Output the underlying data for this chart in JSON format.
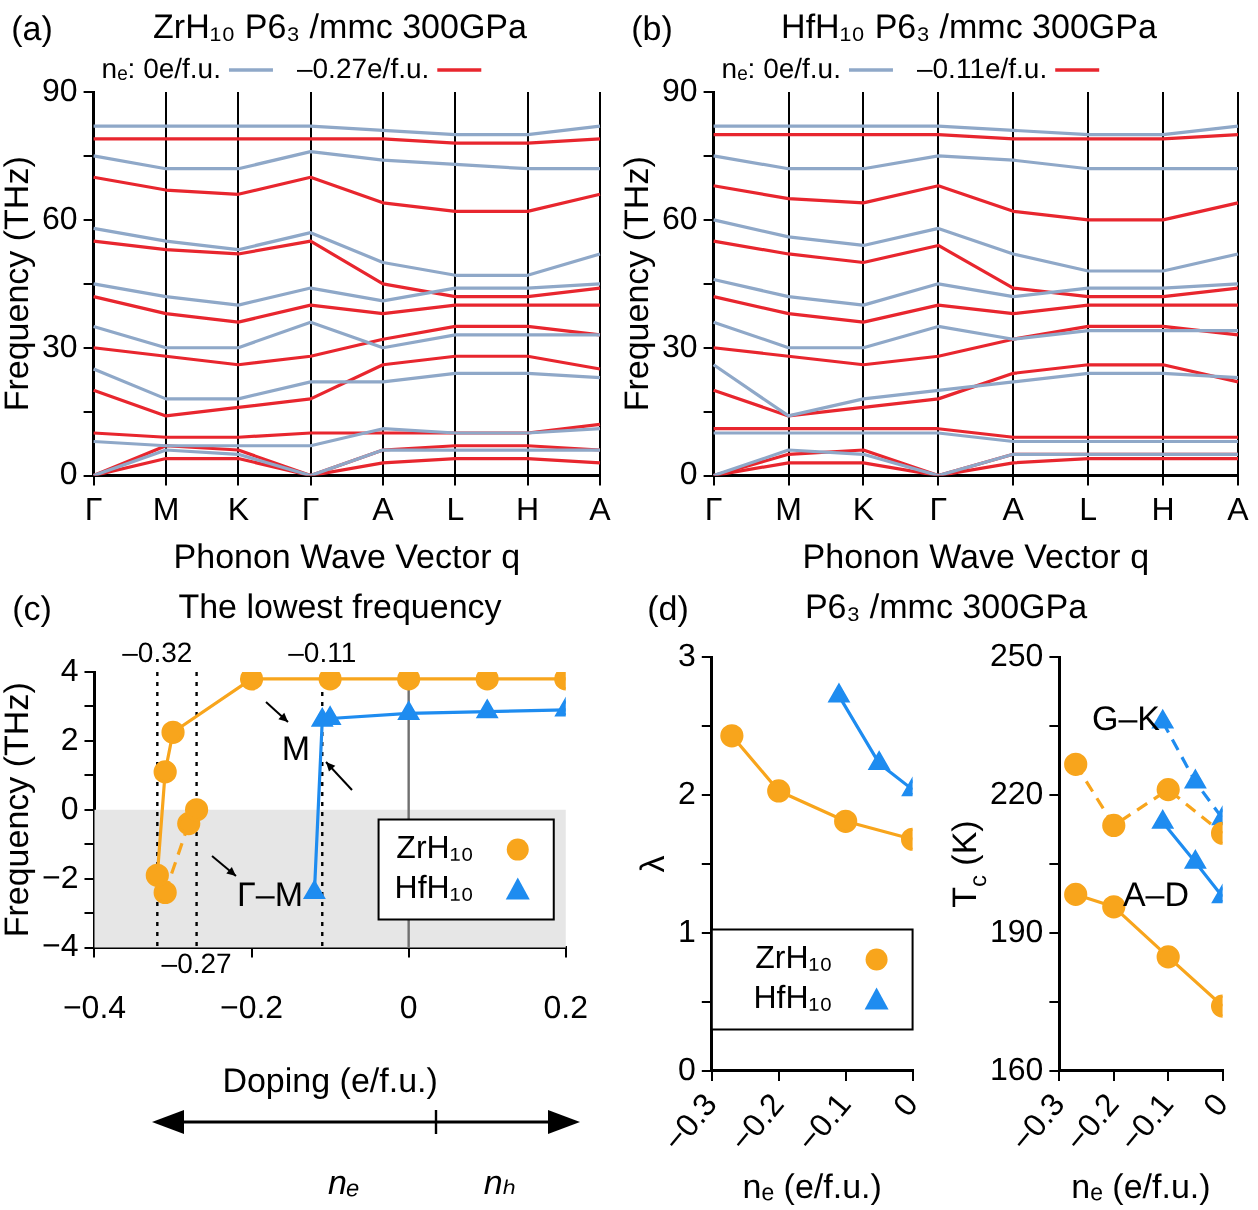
{
  "chart_data": [
    {
      "type": "line",
      "title": "ZrH₁₀ P6₃ /mmc 300GPa",
      "xlabel": "Phonon Wave Vector q",
      "ylabel": "Frequency (THz)",
      "annotations": [
        "(a)"
      ],
      "categories": [
        "Γ",
        "M",
        "K",
        "Γ",
        "A",
        "L",
        "H",
        "A"
      ],
      "ylim": [
        0,
        90
      ],
      "yticks": [
        0,
        {
          "value": 15,
          "label": null
        },
        30,
        {
          "value": 45,
          "label": null
        },
        60,
        {
          "value": 75,
          "label": null
        },
        90
      ],
      "grid": "x",
      "legend": "top",
      "marker": "none",
      "line_style": "solid",
      "series": [
        {
          "name": "nₑ: 0e/f.u.",
          "color": "#8fa8c8",
          "values": [
            82,
            82,
            82,
            82,
            81,
            80,
            80,
            82
          ]
        },
        {
          "color": "#8fa8c8",
          "values": [
            75,
            72,
            72,
            76,
            74,
            73,
            72,
            72
          ]
        },
        {
          "color": "#8fa8c8",
          "values": [
            58,
            55,
            53,
            57,
            50,
            47,
            47,
            52
          ]
        },
        {
          "color": "#8fa8c8",
          "values": [
            45,
            42,
            40,
            44,
            41,
            44,
            44,
            45
          ]
        },
        {
          "color": "#8fa8c8",
          "values": [
            35,
            30,
            30,
            36,
            30,
            33,
            33,
            33
          ]
        },
        {
          "color": "#8fa8c8",
          "values": [
            25,
            18,
            18,
            22,
            22,
            24,
            24,
            23
          ]
        },
        {
          "color": "#8fa8c8",
          "values": [
            8,
            7,
            7,
            7,
            11,
            10,
            10,
            11
          ]
        },
        {
          "color": "#8fa8c8",
          "values": [
            0,
            6,
            5,
            0,
            6,
            6,
            6,
            6
          ]
        },
        {
          "name": "–0.27e/f.u.",
          "color": "#e8262e",
          "values": [
            79,
            79,
            79,
            79,
            79,
            78,
            78,
            79
          ]
        },
        {
          "color": "#e8262e",
          "values": [
            70,
            67,
            66,
            70,
            64,
            62,
            62,
            66
          ]
        },
        {
          "color": "#e8262e",
          "values": [
            55,
            53,
            52,
            55,
            45,
            42,
            42,
            44
          ]
        },
        {
          "color": "#e8262e",
          "values": [
            42,
            38,
            36,
            40,
            38,
            40,
            40,
            40
          ]
        },
        {
          "color": "#e8262e",
          "values": [
            30,
            28,
            26,
            28,
            32,
            35,
            35,
            33
          ]
        },
        {
          "color": "#e8262e",
          "values": [
            20,
            14,
            16,
            18,
            26,
            28,
            28,
            25
          ]
        },
        {
          "color": "#e8262e",
          "values": [
            10,
            9,
            9,
            10,
            10,
            10,
            10,
            12
          ]
        },
        {
          "color": "#e8262e",
          "values": [
            0,
            7,
            6,
            0,
            6,
            7,
            7,
            6
          ]
        },
        {
          "color": "#e8262e",
          "values": [
            0,
            4,
            4,
            0,
            3,
            4,
            4,
            3
          ]
        }
      ]
    },
    {
      "type": "line",
      "title": "HfH₁₀ P6₃ /mmc 300GPa",
      "xlabel": "Phonon Wave Vector q",
      "ylabel": "Frequency (THz)",
      "annotations": [
        "(b)"
      ],
      "categories": [
        "Γ",
        "M",
        "K",
        "Γ",
        "A",
        "L",
        "H",
        "A"
      ],
      "ylim": [
        0,
        90
      ],
      "yticks": [
        0,
        {
          "value": 15,
          "label": null
        },
        30,
        {
          "value": 45,
          "label": null
        },
        60,
        {
          "value": 75,
          "label": null
        },
        90
      ],
      "grid": "x",
      "legend": "top",
      "marker": "none",
      "line_style": "solid",
      "series": [
        {
          "name": "nₑ: 0e/f.u.",
          "color": "#8fa8c8",
          "values": [
            82,
            82,
            82,
            82,
            81,
            80,
            80,
            82
          ]
        },
        {
          "color": "#8fa8c8",
          "values": [
            75,
            72,
            72,
            75,
            74,
            72,
            72,
            72
          ]
        },
        {
          "color": "#8fa8c8",
          "values": [
            60,
            56,
            54,
            58,
            52,
            48,
            48,
            52
          ]
        },
        {
          "color": "#8fa8c8",
          "values": [
            46,
            42,
            40,
            45,
            42,
            44,
            44,
            45
          ]
        },
        {
          "color": "#8fa8c8",
          "values": [
            36,
            30,
            30,
            35,
            32,
            34,
            34,
            34
          ]
        },
        {
          "color": "#8fa8c8",
          "values": [
            26,
            14,
            18,
            20,
            22,
            24,
            24,
            23
          ]
        },
        {
          "color": "#8fa8c8",
          "values": [
            10,
            10,
            10,
            10,
            8,
            8,
            8,
            8
          ]
        },
        {
          "color": "#8fa8c8",
          "values": [
            0,
            6,
            5,
            0,
            5,
            5,
            5,
            5
          ]
        },
        {
          "name": "–0.11e/f.u.",
          "color": "#e8262e",
          "values": [
            80,
            80,
            80,
            80,
            79,
            79,
            79,
            80
          ]
        },
        {
          "color": "#e8262e",
          "values": [
            68,
            65,
            64,
            68,
            62,
            60,
            60,
            64
          ]
        },
        {
          "color": "#e8262e",
          "values": [
            55,
            52,
            50,
            54,
            44,
            42,
            42,
            44
          ]
        },
        {
          "color": "#e8262e",
          "values": [
            42,
            38,
            36,
            40,
            38,
            40,
            40,
            40
          ]
        },
        {
          "color": "#e8262e",
          "values": [
            30,
            28,
            26,
            28,
            32,
            35,
            35,
            33
          ]
        },
        {
          "color": "#e8262e",
          "values": [
            20,
            14,
            16,
            18,
            24,
            26,
            26,
            22
          ]
        },
        {
          "color": "#e8262e",
          "values": [
            11,
            11,
            11,
            11,
            9,
            9,
            9,
            9
          ]
        },
        {
          "color": "#e8262e",
          "values": [
            0,
            5,
            6,
            0,
            5,
            5,
            5,
            5
          ]
        },
        {
          "color": "#e8262e",
          "values": [
            0,
            3,
            3,
            0,
            3,
            4,
            4,
            4
          ]
        }
      ]
    },
    {
      "type": "line",
      "title": "The lowest frequency",
      "xlabel": "Doping (e/f.u.)",
      "ylabel": "Frequency (THz)",
      "annotations": [
        "(c)",
        "M",
        "Γ–M",
        "nₑ",
        "nₕ"
      ],
      "xlim": [
        -0.4,
        0.2
      ],
      "xticks": [
        -0.4,
        -0.2,
        0,
        0.2
      ],
      "ylim": [
        -4,
        4
      ],
      "yticks": [
        -4,
        {
          "value": -3,
          "label": null
        },
        -2,
        {
          "value": -1,
          "label": null
        },
        0,
        {
          "value": 1,
          "label": null
        },
        2,
        {
          "value": 3,
          "label": null
        },
        4
      ],
      "legend": "bottom right",
      "ref_lines": [
        {
          "axis": "x",
          "value": -0.32,
          "label": "–0.32",
          "line_style": "dotted",
          "color": "#000000"
        },
        {
          "axis": "x",
          "value": -0.27,
          "label": "–0.27",
          "line_style": "dotted",
          "color": "#000000"
        },
        {
          "axis": "x",
          "value": -0.11,
          "label": "–0.11",
          "line_style": "dotted",
          "color": "#000000"
        },
        {
          "axis": "x",
          "value": 0,
          "color": "#707070",
          "line_style": "solid"
        }
      ],
      "bands": [
        {
          "axis": "y",
          "from": -4,
          "to": 0,
          "color": "#e6e6e6"
        }
      ],
      "series": [
        {
          "name": "ZrH₁₀",
          "color": "#f8a51c",
          "marker": "circle",
          "line_style": "solid",
          "x": [
            -0.32,
            -0.31,
            -0.3,
            -0.2,
            -0.1,
            0,
            0.1,
            0.2
          ],
          "values": [
            -1.9,
            1.1,
            2.25,
            3.8,
            3.8,
            3.8,
            3.8,
            3.8
          ]
        },
        {
          "color": "#f8a51c",
          "marker": "circle",
          "line_style": "dashed",
          "x": [
            -0.31,
            -0.28,
            -0.27
          ],
          "values": [
            -2.4,
            -0.4,
            0.0
          ]
        },
        {
          "name": "HfH₁₀",
          "color": "#1e8cf0",
          "marker": "triangle",
          "line_style": "solid",
          "x": [
            -0.12,
            -0.11,
            -0.1,
            0,
            0.1,
            0.2
          ],
          "values": [
            -2.4,
            2.6,
            2.65,
            2.8,
            2.85,
            2.9
          ]
        }
      ]
    },
    {
      "type": "line",
      "title": "P6₃ /mmc 300GPa",
      "xlabel": "nₑ (e/f.u.)",
      "ylabel": "λ",
      "annotations": [
        "(d)"
      ],
      "xlim": [
        -0.3,
        0
      ],
      "xticks": [
        -0.3,
        -0.2,
        -0.1,
        0
      ],
      "ylim": [
        0,
        3
      ],
      "yticks": [
        0,
        {
          "value": 0.5,
          "label": null
        },
        1,
        {
          "value": 1.5,
          "label": null
        },
        2,
        {
          "value": 2.5,
          "label": null
        },
        3
      ],
      "legend": "bottom",
      "series": [
        {
          "name": "ZrH₁₀",
          "color": "#f8a51c",
          "marker": "circle",
          "line_style": "solid",
          "x": [
            -0.27,
            -0.2,
            -0.1,
            0
          ],
          "values": [
            2.43,
            2.03,
            1.81,
            1.68
          ]
        },
        {
          "name": "HfH₁₀",
          "color": "#1e8cf0",
          "marker": "triangle",
          "line_style": "solid",
          "x": [
            -0.11,
            -0.05,
            0
          ],
          "values": [
            2.72,
            2.23,
            2.04
          ]
        }
      ]
    },
    {
      "type": "line",
      "xlabel": "nₑ (e/f.u.)",
      "ylabel": "T$_{c}$ (K)",
      "annotations": [
        "G–K",
        "A–D"
      ],
      "xlim": [
        -0.3,
        0
      ],
      "xticks": [
        -0.3,
        -0.2,
        -0.1,
        0
      ],
      "ylim": [
        160,
        250
      ],
      "yticks": [
        160,
        {
          "value": 175,
          "label": null
        },
        190,
        {
          "value": 205,
          "label": null
        },
        220,
        {
          "value": 235,
          "label": null
        },
        250
      ],
      "series": [
        {
          "color": "#f8a51c",
          "marker": "circle",
          "line_style": "solid",
          "x": [
            -0.27,
            -0.2,
            -0.1,
            0
          ],
          "values": [
            198.4,
            195.7,
            184.8,
            174.1
          ]
        },
        {
          "color": "#f8a51c",
          "marker": "circle",
          "line_style": "dashed",
          "x": [
            -0.27,
            -0.2,
            -0.1,
            0
          ],
          "values": [
            226.7,
            213.4,
            221.2,
            211.7
          ]
        },
        {
          "color": "#1e8cf0",
          "marker": "triangle",
          "line_style": "dashed",
          "x": [
            -0.11,
            -0.05,
            0
          ],
          "values": [
            235.9,
            222.9,
            214.9
          ]
        },
        {
          "color": "#1e8cf0",
          "marker": "triangle",
          "line_style": "solid",
          "x": [
            -0.11,
            -0.05,
            0
          ],
          "values": [
            214.1,
            205.4,
            197.9
          ]
        }
      ]
    }
  ]
}
